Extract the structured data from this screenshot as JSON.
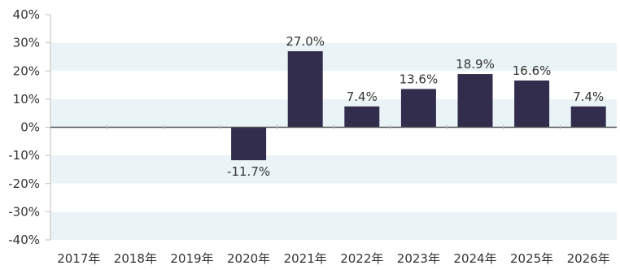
{
  "chart_data": {
    "type": "bar",
    "categories": [
      "2017年",
      "2018年",
      "2019年",
      "2020年",
      "2021年",
      "2022年",
      "2023年",
      "2024年",
      "2025年",
      "2026年"
    ],
    "values": [
      null,
      null,
      null,
      -11.7,
      27.0,
      7.4,
      13.6,
      18.9,
      16.6,
      7.4
    ],
    "data_labels": [
      "",
      "",
      "",
      "-11.7%",
      "27.0%",
      "7.4%",
      "13.6%",
      "18.9%",
      "16.6%",
      "7.4%"
    ],
    "y_ticks": [
      40,
      30,
      20,
      10,
      0,
      -10,
      -20,
      -30,
      -40
    ],
    "y_tick_labels": [
      "40%",
      "30%",
      "20%",
      "10%",
      "0%",
      "-10%",
      "-20%",
      "-30%",
      "-40%"
    ],
    "ylim": [
      -40,
      40
    ],
    "title": "",
    "xlabel": "",
    "ylabel": "",
    "legend": "none",
    "grid": "alternating horizontal bands",
    "colors": {
      "bar": "#322c4d",
      "band_light": "#eaf4f7",
      "band_white": "#ffffff",
      "zero_line": "#555555",
      "axis_line": "#bfbfbf",
      "text": "#333333"
    }
  }
}
